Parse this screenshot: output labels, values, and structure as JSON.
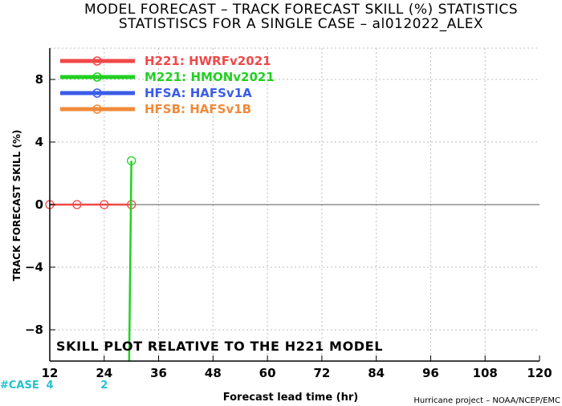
{
  "chart_data": {
    "type": "line",
    "title": "MODEL FORECAST – TRACK FORECAST SKILL (%) STATISTICS",
    "subtitle": "STATISTISCS FOR A SINGLE CASE – al012022_ALEX",
    "xlabel": "Forecast lead time (hr)",
    "ylabel": "TRACK FORECAST SKILL (%)",
    "xlim": [
      12,
      120
    ],
    "ylim": [
      -10,
      10
    ],
    "xticks": [
      12,
      24,
      36,
      48,
      60,
      72,
      84,
      96,
      108,
      120
    ],
    "yticks": [
      -8,
      -4,
      0,
      4,
      8
    ],
    "grid": true,
    "legend": "top-left",
    "annotation": "SKILL PLOT RELATIVE TO THE H221 MODEL",
    "case_label": "#CASE",
    "case_counts": [
      {
        "x": 12,
        "count": "4"
      },
      {
        "x": 24,
        "count": "2"
      }
    ],
    "credit": "Hurricane project – NOAA/NCEP/EMC",
    "series": [
      {
        "name": "H221: HWRFv2021",
        "color": "#f04848",
        "x": [
          12,
          18,
          24,
          30
        ],
        "y": [
          0,
          0,
          0,
          0
        ]
      },
      {
        "name": "M221: HMONv2021",
        "color": "#22d022",
        "x": [
          29.5,
          30
        ],
        "y": [
          -10,
          2.8
        ],
        "markers": [
          false,
          true
        ]
      },
      {
        "name": "HFSA: HAFSv1A",
        "color": "#3a5ce8",
        "x": [],
        "y": []
      },
      {
        "name": "HFSB: HAFSv1B",
        "color": "#f08a3a",
        "x": [],
        "y": []
      }
    ]
  }
}
